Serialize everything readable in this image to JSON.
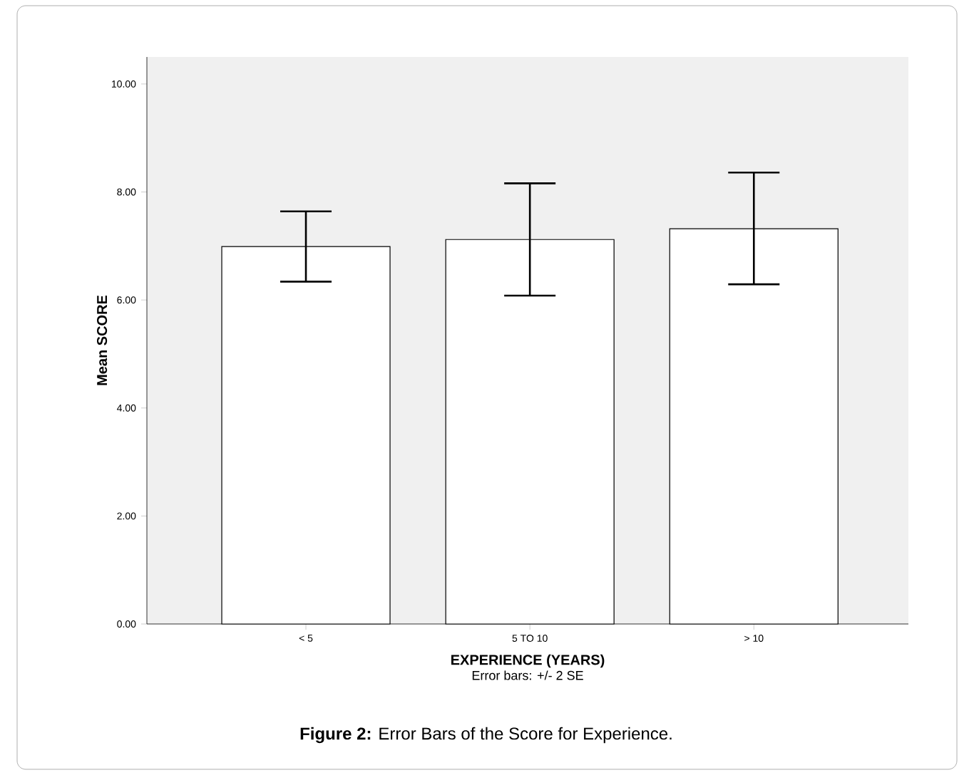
{
  "chart_data": {
    "type": "bar",
    "title": "**Figure 2:** Error Bars of the Score for Experience.",
    "xlabel": "EXPERIENCE (YEARS)",
    "ylabel": "Mean SCORE",
    "annotations": [
      "Error bars: +/- 2 SE"
    ],
    "categories": [
      "< 5",
      "5 TO 10",
      "> 10"
    ],
    "values": [
      6.99,
      7.12,
      7.32
    ],
    "errors": [
      [
        6.34,
        7.64
      ],
      [
        6.08,
        8.16
      ],
      [
        6.29,
        8.36
      ]
    ],
    "color": "#ffffff",
    "ylim": [
      0,
      10.5
    ],
    "yticks": [
      {
        "value": 0,
        "label": "0.00"
      },
      {
        "value": 2,
        "label": "2.00"
      },
      {
        "value": 4,
        "label": "4.00"
      },
      {
        "value": 6,
        "label": "6.00"
      },
      {
        "value": 8,
        "label": "8.00"
      },
      {
        "value": 10,
        "label": "10.00"
      }
    ]
  }
}
